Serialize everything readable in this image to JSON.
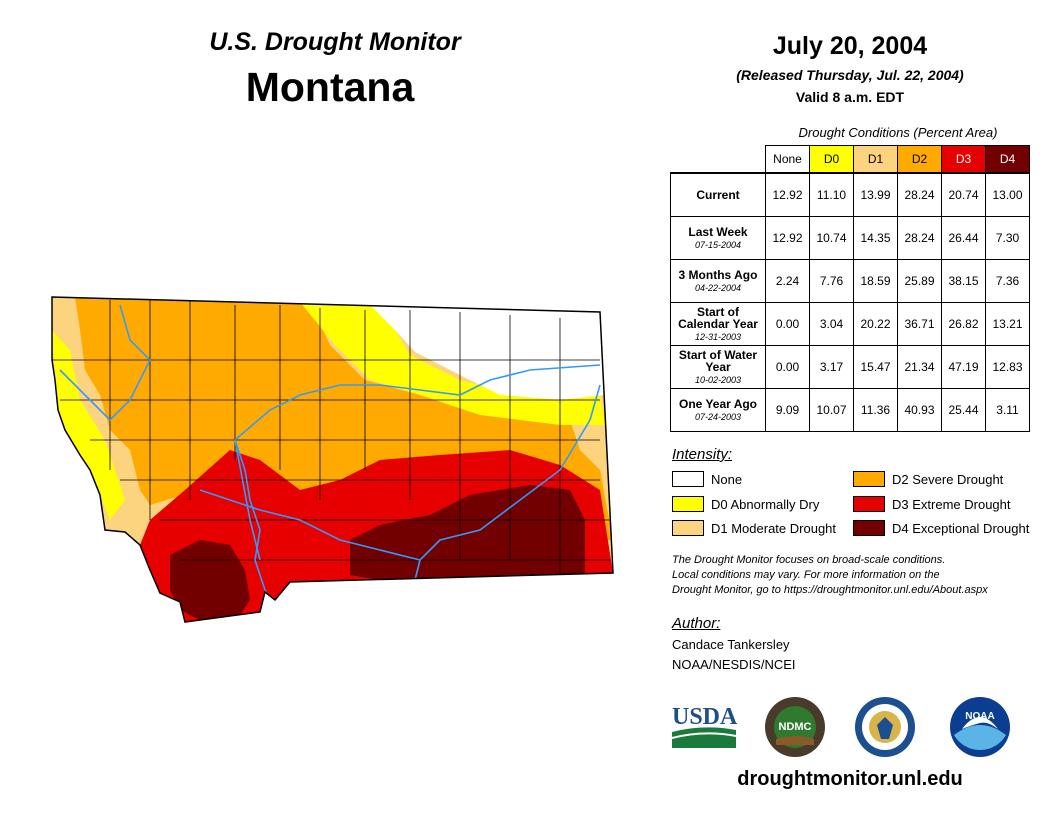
{
  "header": {
    "product": "U.S. Drought Monitor",
    "state": "Montana",
    "date": "July 20, 2004",
    "released": "(Released Thursday, Jul. 22, 2004)",
    "valid": "Valid 8 a.m. EDT"
  },
  "table": {
    "caption": "Drought Conditions (Percent Area)",
    "columns": [
      "None",
      "D0",
      "D1",
      "D2",
      "D3",
      "D4"
    ],
    "column_colors": [
      "#ffffff",
      "#ffff00",
      "#fcd37f",
      "#ffaa00",
      "#e60000",
      "#730000"
    ],
    "column_text_colors": [
      "#000000",
      "#000000",
      "#000000",
      "#000000",
      "#ffffff",
      "#ffffff"
    ],
    "rows": [
      {
        "label": "Current",
        "date": "",
        "values": [
          "12.92",
          "11.10",
          "13.99",
          "28.24",
          "20.74",
          "13.00"
        ]
      },
      {
        "label": "Last Week",
        "date": "07-15-2004",
        "values": [
          "12.92",
          "10.74",
          "14.35",
          "28.24",
          "26.44",
          "7.30"
        ]
      },
      {
        "label": "3 Months Ago",
        "date": "04-22-2004",
        "values": [
          "2.24",
          "7.76",
          "18.59",
          "25.89",
          "38.15",
          "7.36"
        ]
      },
      {
        "label": "Start of Calendar Year",
        "date": "12-31-2003",
        "values": [
          "0.00",
          "3.04",
          "20.22",
          "36.71",
          "26.82",
          "13.21"
        ]
      },
      {
        "label": "Start of Water Year",
        "date": "10-02-2003",
        "values": [
          "0.00",
          "3.17",
          "15.47",
          "21.34",
          "47.19",
          "12.83"
        ]
      },
      {
        "label": "One Year Ago",
        "date": "07-24-2003",
        "values": [
          "9.09",
          "10.07",
          "11.36",
          "40.93",
          "25.44",
          "3.11"
        ]
      }
    ]
  },
  "legend": {
    "title": "Intensity:",
    "items": [
      {
        "label": "None",
        "color": "#ffffff"
      },
      {
        "label": "D0 Abnormally Dry",
        "color": "#ffff00"
      },
      {
        "label": "D1 Moderate Drought",
        "color": "#fcd37f"
      },
      {
        "label": "D2 Severe Drought",
        "color": "#ffaa00"
      },
      {
        "label": "D3 Extreme Drought",
        "color": "#e60000"
      },
      {
        "label": "D4 Exceptional Drought",
        "color": "#730000"
      }
    ]
  },
  "note": [
    "The Drought Monitor focuses on broad-scale conditions.",
    "Local conditions may vary. For more information on the",
    "Drought Monitor, go to https://droughtmonitor.unl.edu/About.aspx"
  ],
  "author": {
    "label": "Author:",
    "name": "Candace Tankersley",
    "org": "NOAA/NESDIS/NCEI"
  },
  "logos": {
    "usda": "USDA",
    "ndmc": "NDMC",
    "noaa": "NOAA"
  },
  "footer_url": "droughtmonitor.unl.edu",
  "map_colors": {
    "river": "#3399ff",
    "border": "#000000"
  }
}
